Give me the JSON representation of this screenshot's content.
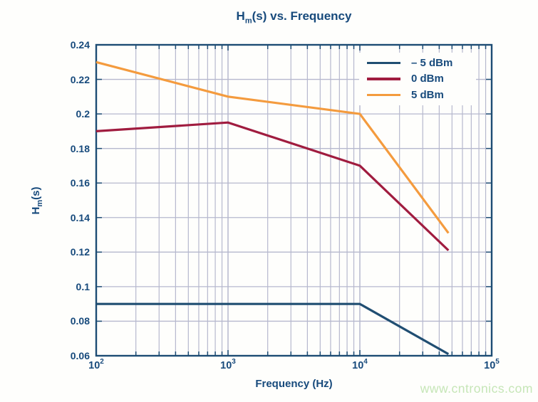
{
  "page": {
    "watermark": "www.cntronics.com"
  },
  "chart_data": {
    "type": "line",
    "title": {
      "prefix": "H",
      "sub": "m",
      "suffix": "(s) vs. Frequency"
    },
    "xlabel": "Frequency (Hz)",
    "ylabel": {
      "prefix": "H",
      "sub": "m",
      "suffix": "(s)"
    },
    "x_scale": "log",
    "xlim": [
      100,
      100000
    ],
    "ylim": [
      0.06,
      0.24
    ],
    "grid": true,
    "legend_position": "top-right",
    "x_ticks": [
      {
        "base": "10",
        "exp": "2"
      },
      {
        "base": "10",
        "exp": "3"
      },
      {
        "base": "10",
        "exp": "4"
      },
      {
        "base": "10",
        "exp": "5"
      }
    ],
    "y_ticks": [
      {
        "value": 0.24,
        "label": "0.24"
      },
      {
        "value": 0.22,
        "label": "0.22"
      },
      {
        "value": 0.2,
        "label": "0.2"
      },
      {
        "value": 0.18,
        "label": "0.18"
      },
      {
        "value": 0.16,
        "label": "0.16"
      },
      {
        "value": 0.14,
        "label": "0.14"
      },
      {
        "value": 0.12,
        "label": "0.12"
      },
      {
        "value": 0.1,
        "label": "0.1"
      },
      {
        "value": 0.08,
        "label": "0.08"
      },
      {
        "value": 0.06,
        "label": "0.06"
      }
    ],
    "colors": {
      "text_navy": "#174a7c",
      "axis_navy": "#1d4c74",
      "gridline": "#b6b8ce",
      "plot_background": "#fefefc",
      "watermark_green": "#c6e6b7"
    },
    "series": [
      {
        "name": "– 5 dBm",
        "color": "#204e72",
        "x": [
          100,
          10000,
          47000
        ],
        "y": [
          0.09,
          0.09,
          0.061
        ]
      },
      {
        "name": "0 dBm",
        "color": "#a01c3f",
        "x": [
          100,
          1000,
          10000,
          47000
        ],
        "y": [
          0.19,
          0.195,
          0.17,
          0.121
        ]
      },
      {
        "name": "5 dBm",
        "color": "#f49b3e",
        "x": [
          100,
          1000,
          10000,
          47000
        ],
        "y": [
          0.23,
          0.21,
          0.2,
          0.131
        ]
      }
    ]
  }
}
